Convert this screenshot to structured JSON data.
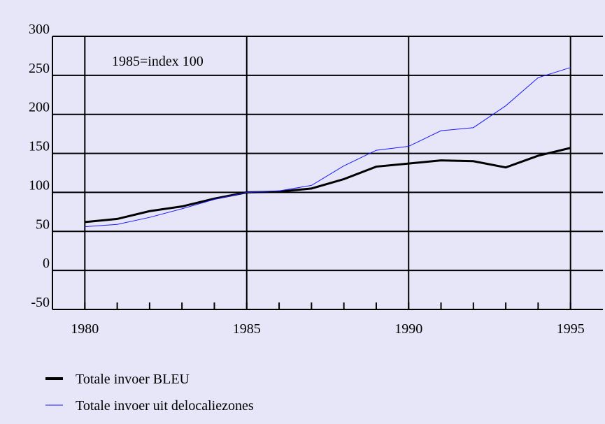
{
  "chart_data": {
    "type": "line",
    "annotation": "1985=index 100",
    "x": [
      1980,
      1981,
      1982,
      1983,
      1984,
      1985,
      1986,
      1987,
      1988,
      1989,
      1990,
      1991,
      1992,
      1993,
      1994,
      1995
    ],
    "series": [
      {
        "name": "Totale invoer BLEU",
        "color": "#000000",
        "values": [
          62,
          66,
          76,
          82,
          92,
          100,
          101,
          105,
          117,
          133,
          137,
          141,
          140,
          132,
          147,
          157
        ]
      },
      {
        "name": "Totale invoer uit delocaliezones",
        "color": "#1a1aff",
        "values": [
          56,
          59,
          68,
          79,
          91,
          100,
          102,
          109,
          134,
          154,
          159,
          179,
          183,
          211,
          247,
          260
        ]
      }
    ],
    "xlim": [
      1979,
      1996
    ],
    "xticks": [
      1980,
      1985,
      1990,
      1995
    ],
    "ylim": [
      -50,
      300
    ],
    "yticks": [
      -50,
      0,
      50,
      100,
      150,
      200,
      250,
      300
    ],
    "grid": true
  }
}
